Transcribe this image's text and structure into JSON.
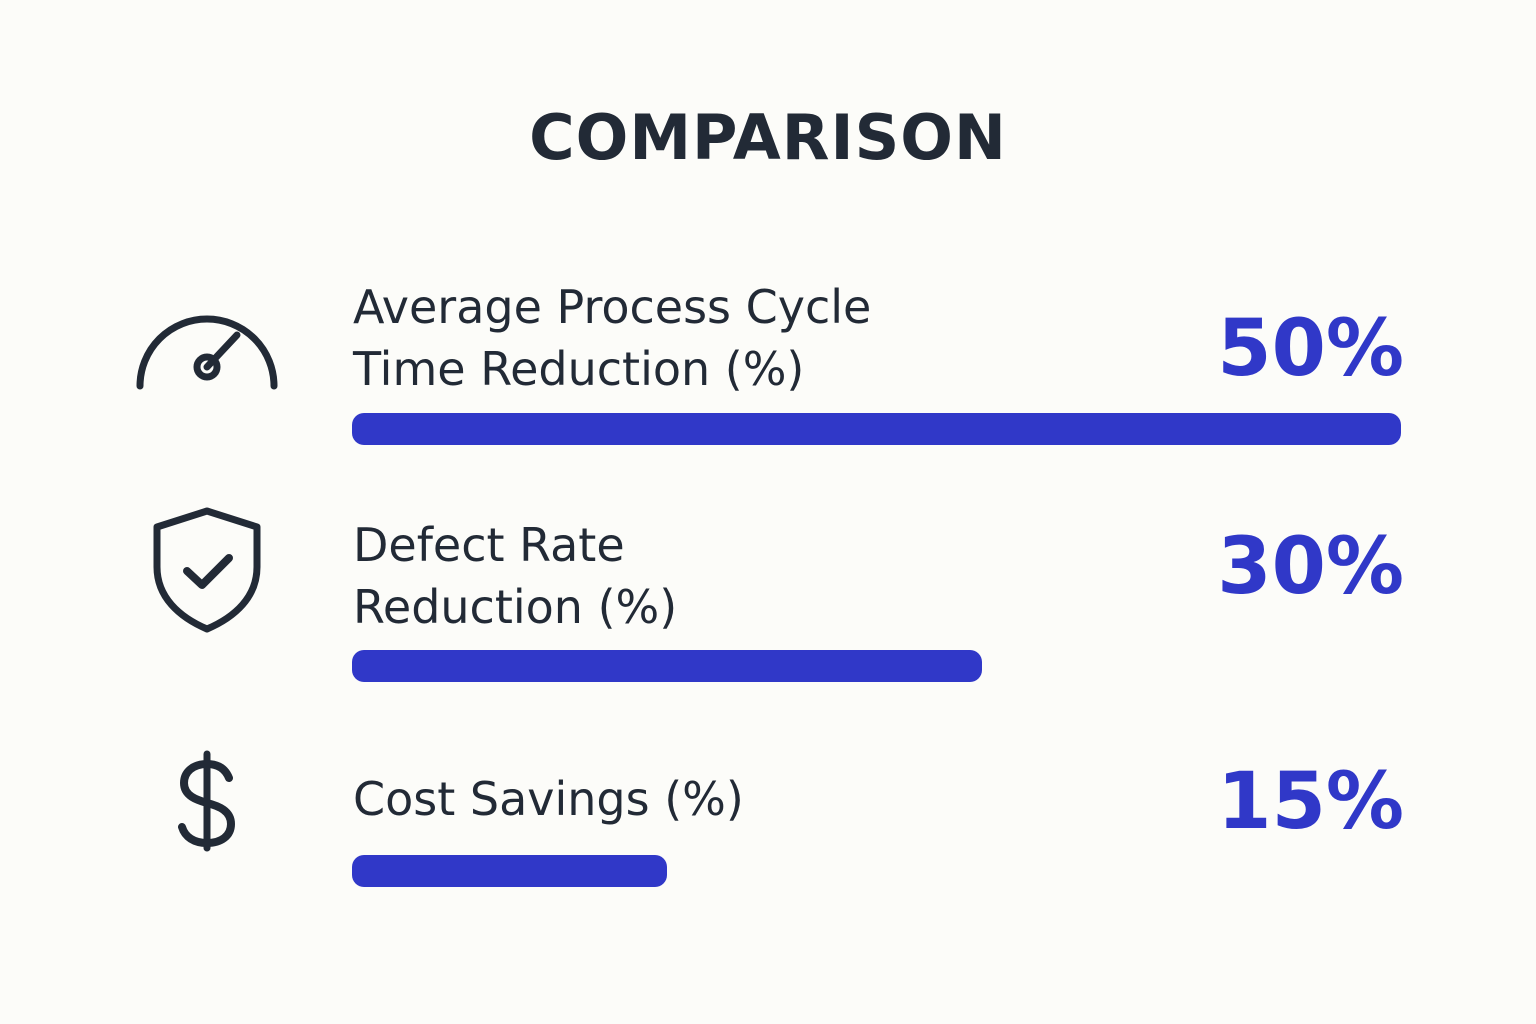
{
  "chart_data": {
    "type": "bar",
    "title": "COMPARISON",
    "orientation": "horizontal",
    "categories": [
      "Average Process Cycle Time Reduction (%)",
      "Defect Rate Reduction (%)",
      "Cost Savings (%)"
    ],
    "values": [
      50,
      30,
      15
    ],
    "ylim": [
      0,
      50
    ],
    "grid": false,
    "legend": "none"
  },
  "metrics": [
    {
      "label_lines": [
        "Average Process Cycle",
        "Time Reduction (%)"
      ],
      "value_label": "50%",
      "value": 50,
      "icon": "speedometer-icon"
    },
    {
      "label_lines": [
        "Defect Rate",
        "Reduction (%)"
      ],
      "value_label": "30%",
      "value": 30,
      "icon": "shield-check-icon"
    },
    {
      "label_lines": [
        "Cost Savings (%)"
      ],
      "value_label": "15%",
      "value": 15,
      "icon": "dollar-icon"
    }
  ],
  "colors": {
    "accent": "#3038c8",
    "text": "#222a36",
    "background": "#fcfcf9"
  }
}
